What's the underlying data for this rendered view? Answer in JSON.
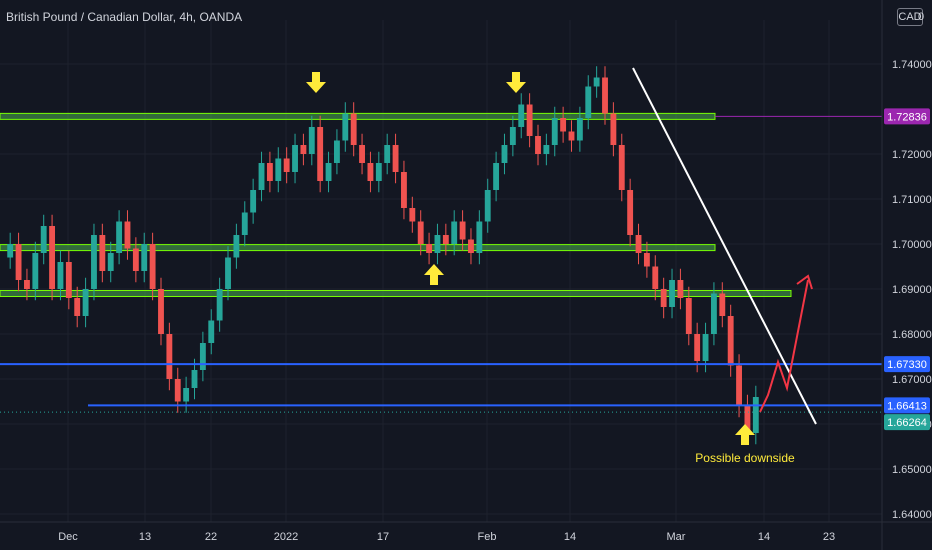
{
  "header": {
    "title": "British Pound / Canadian Dollar, 4h, OANDA",
    "currency": "CAD",
    "currency_tail": "0"
  },
  "colors": {
    "background": "#131722",
    "grid": "#1e222d",
    "bull": "#26a69a",
    "bear": "#ef5350",
    "zone_fill": "#4caf50",
    "zone_border": "#76ff03",
    "support_line": "#2962ff",
    "trendline": "#ffffff",
    "arrow": "#ffeb3b",
    "projection": "#f23645",
    "resistance_label": "#9c27b0",
    "support_label": "#2962ff",
    "price_label": "#26a69a"
  },
  "chart_data": {
    "type": "candlestick",
    "title": "British Pound / Canadian Dollar, 4h, OANDA",
    "ylim": [
      1.635,
      1.749
    ],
    "yticks": [
      1.74,
      1.72,
      1.71,
      1.7,
      1.69,
      1.68,
      1.67,
      1.66,
      1.65,
      1.64
    ],
    "ytick_labels": [
      "1.74000",
      "1.72000",
      "1.71000",
      "1.70000",
      "1.69000",
      "1.68000",
      "1.67000",
      "1.66000",
      "1.65000",
      "1.64000"
    ],
    "xticks": [
      "Dec",
      "13",
      "22",
      "2022",
      "17",
      "Feb",
      "14",
      "Mar",
      "14",
      "23"
    ],
    "price_path": [
      [
        1.697,
        1.7
      ],
      [
        1.7,
        1.692
      ],
      [
        1.692,
        1.69
      ],
      [
        1.69,
        1.698
      ],
      [
        1.698,
        1.704
      ],
      [
        1.704,
        1.69
      ],
      [
        1.69,
        1.696
      ],
      [
        1.696,
        1.688
      ],
      [
        1.688,
        1.684
      ],
      [
        1.684,
        1.69
      ],
      [
        1.69,
        1.702
      ],
      [
        1.702,
        1.694
      ],
      [
        1.694,
        1.698
      ],
      [
        1.698,
        1.705
      ],
      [
        1.705,
        1.699
      ],
      [
        1.699,
        1.694
      ],
      [
        1.694,
        1.7
      ],
      [
        1.7,
        1.69
      ],
      [
        1.69,
        1.68
      ],
      [
        1.68,
        1.67
      ],
      [
        1.67,
        1.665
      ],
      [
        1.665,
        1.668
      ],
      [
        1.668,
        1.672
      ],
      [
        1.672,
        1.678
      ],
      [
        1.678,
        1.683
      ],
      [
        1.683,
        1.69
      ],
      [
        1.69,
        1.697
      ],
      [
        1.697,
        1.702
      ],
      [
        1.702,
        1.707
      ],
      [
        1.707,
        1.712
      ],
      [
        1.712,
        1.718
      ],
      [
        1.718,
        1.714
      ],
      [
        1.714,
        1.719
      ],
      [
        1.719,
        1.716
      ],
      [
        1.716,
        1.722
      ],
      [
        1.722,
        1.72
      ],
      [
        1.72,
        1.726
      ],
      [
        1.726,
        1.714
      ],
      [
        1.714,
        1.718
      ],
      [
        1.718,
        1.723
      ],
      [
        1.723,
        1.729
      ],
      [
        1.729,
        1.722
      ],
      [
        1.722,
        1.718
      ],
      [
        1.718,
        1.714
      ],
      [
        1.714,
        1.718
      ],
      [
        1.718,
        1.722
      ],
      [
        1.722,
        1.716
      ],
      [
        1.716,
        1.708
      ],
      [
        1.708,
        1.705
      ],
      [
        1.705,
        1.7
      ],
      [
        1.7,
        1.698
      ],
      [
        1.698,
        1.702
      ],
      [
        1.702,
        1.7
      ],
      [
        1.7,
        1.705
      ],
      [
        1.705,
        1.701
      ],
      [
        1.701,
        1.698
      ],
      [
        1.698,
        1.705
      ],
      [
        1.705,
        1.712
      ],
      [
        1.712,
        1.718
      ],
      [
        1.718,
        1.722
      ],
      [
        1.722,
        1.726
      ],
      [
        1.726,
        1.731
      ],
      [
        1.731,
        1.724
      ],
      [
        1.724,
        1.72
      ],
      [
        1.72,
        1.722
      ],
      [
        1.722,
        1.728
      ],
      [
        1.728,
        1.725
      ],
      [
        1.725,
        1.723
      ],
      [
        1.723,
        1.728
      ],
      [
        1.728,
        1.735
      ],
      [
        1.735,
        1.737
      ],
      [
        1.737,
        1.729
      ],
      [
        1.729,
        1.722
      ],
      [
        1.722,
        1.712
      ],
      [
        1.712,
        1.702
      ],
      [
        1.702,
        1.698
      ],
      [
        1.698,
        1.695
      ],
      [
        1.695,
        1.69
      ],
      [
        1.69,
        1.686
      ],
      [
        1.686,
        1.692
      ],
      [
        1.692,
        1.688
      ],
      [
        1.688,
        1.68
      ],
      [
        1.68,
        1.674
      ],
      [
        1.674,
        1.68
      ],
      [
        1.68,
        1.689
      ],
      [
        1.689,
        1.684
      ],
      [
        1.684,
        1.673
      ],
      [
        1.673,
        1.664
      ],
      [
        1.664,
        1.658
      ],
      [
        1.658,
        1.666
      ]
    ],
    "levels": {
      "resistance_current": 1.72836,
      "support_1": 1.6733,
      "support_2": 1.66413,
      "last_price": 1.66264
    },
    "annotations": [
      "Possible downside"
    ]
  },
  "price_labels": [
    {
      "text": "1.72836",
      "kind": "resistance"
    },
    {
      "text": "1.67330",
      "kind": "support"
    },
    {
      "text": "1.66413",
      "kind": "support"
    },
    {
      "text": "1.66264",
      "kind": "price"
    }
  ]
}
